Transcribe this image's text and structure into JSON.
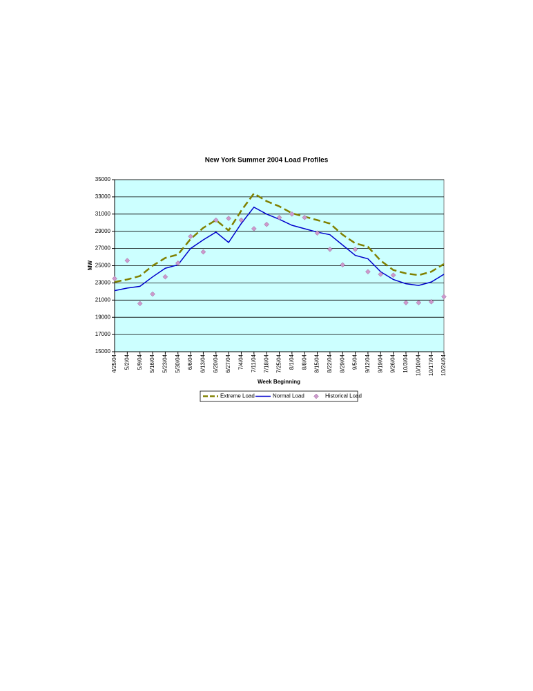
{
  "chart_data": {
    "type": "line",
    "title": "New York Summer 2004 Load Profiles",
    "x_label": "Week Beginning",
    "y_label": "MW",
    "categories": [
      "4/25/04",
      "5/2/04",
      "5/9/04",
      "5/16/04",
      "5/23/04",
      "5/30/04",
      "6/6/04",
      "6/13/04",
      "6/20/04",
      "6/27/04",
      "7/4/04",
      "7/11/04",
      "7/18/04",
      "7/25/04",
      "8/1/04",
      "8/8/04",
      "8/15/04",
      "8/22/04",
      "8/29/04",
      "9/5/04",
      "9/12/04",
      "9/19/04",
      "9/26/04",
      "10/3/04",
      "10/10/04",
      "10/17/04",
      "10/24/04"
    ],
    "series": [
      {
        "name": "Extreme Load",
        "color": "#808000",
        "style": "dashed",
        "values": [
          23100,
          23400,
          23800,
          25000,
          25900,
          26300,
          28100,
          29400,
          30300,
          29100,
          31400,
          33400,
          32500,
          31900,
          31100,
          30700,
          30300,
          29900,
          28600,
          27600,
          27200,
          25600,
          24500,
          24100,
          23900,
          24300,
          25200
        ]
      },
      {
        "name": "Normal Load",
        "color": "#0000cc",
        "style": "solid",
        "values": [
          22100,
          22400,
          22600,
          23700,
          24700,
          25100,
          27000,
          28000,
          28900,
          27700,
          29900,
          31800,
          31000,
          30400,
          29700,
          29300,
          28900,
          28600,
          27400,
          26200,
          25800,
          24300,
          23400,
          22900,
          22700,
          23100,
          24000
        ]
      },
      {
        "name": "Historical Load",
        "color": "#cc99cc",
        "style": "markers",
        "values": [
          23500,
          25600,
          20600,
          21700,
          23700,
          25300,
          28400,
          26600,
          30300,
          30500,
          30300,
          29300,
          29800,
          30600,
          31000,
          30600,
          28800,
          26900,
          25100,
          26900,
          24300,
          24000,
          23900,
          20700,
          20700,
          20800,
          21400
        ]
      }
    ],
    "ylim": [
      15000,
      35000
    ],
    "yticks": [
      15000,
      17000,
      19000,
      21000,
      23000,
      25000,
      27000,
      29000,
      31000,
      33000,
      35000
    ],
    "grid": true,
    "plot_background": "#ccffff",
    "legend": "bottom"
  }
}
